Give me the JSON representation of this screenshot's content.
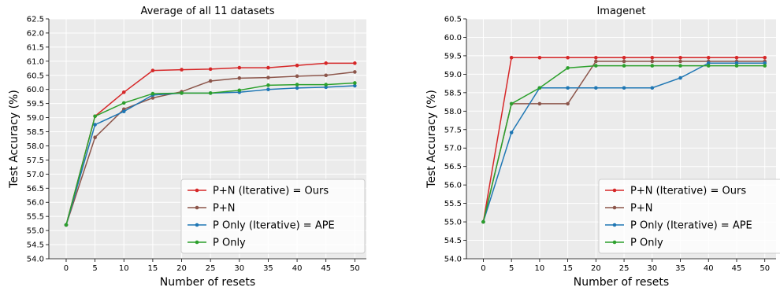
{
  "chart_data": [
    {
      "type": "line",
      "title": "Average of all 11 datasets",
      "xlabel": "Number of resets",
      "ylabel": "Test Accuracy (%)",
      "xlim": [
        -3,
        52
      ],
      "ylim": [
        54.0,
        62.5
      ],
      "x_ticks": [
        0,
        5,
        10,
        15,
        20,
        25,
        30,
        35,
        40,
        45,
        50
      ],
      "y_ticks": [
        54.0,
        54.5,
        55.0,
        55.5,
        56.0,
        56.5,
        57.0,
        57.5,
        58.0,
        58.5,
        59.0,
        59.5,
        60.0,
        60.5,
        61.0,
        61.5,
        62.0,
        62.5
      ],
      "grid": true,
      "legend_position": "lower-right",
      "x": [
        0,
        5,
        10,
        15,
        20,
        25,
        30,
        35,
        40,
        45,
        50
      ],
      "series": [
        {
          "name": "P+N (Iterative) = Ours",
          "color": "#d62728",
          "values": [
            55.2,
            59.05,
            59.9,
            60.67,
            60.7,
            60.72,
            60.77,
            60.77,
            60.85,
            60.93,
            60.93
          ]
        },
        {
          "name": "P+N",
          "color": "#8c564b",
          "values": [
            55.2,
            58.3,
            59.3,
            59.7,
            59.92,
            60.3,
            60.4,
            60.42,
            60.47,
            60.5,
            60.62
          ]
        },
        {
          "name": "P Only (Iterative) = APE",
          "color": "#1f77b4",
          "values": [
            55.2,
            58.75,
            59.22,
            59.8,
            59.87,
            59.87,
            59.9,
            60.0,
            60.05,
            60.08,
            60.13
          ]
        },
        {
          "name": "P Only",
          "color": "#2ca02c",
          "values": [
            55.2,
            59.05,
            59.52,
            59.85,
            59.87,
            59.87,
            59.97,
            60.15,
            60.17,
            60.17,
            60.23
          ]
        }
      ]
    },
    {
      "type": "line",
      "title": "Imagenet",
      "xlabel": "Number of resets",
      "ylabel": "Test Accuracy (%)",
      "xlim": [
        -3,
        52
      ],
      "ylim": [
        54.0,
        60.5
      ],
      "x_ticks": [
        0,
        5,
        10,
        15,
        20,
        25,
        30,
        35,
        40,
        45,
        50
      ],
      "y_ticks": [
        54.0,
        54.5,
        55.0,
        55.5,
        56.0,
        56.5,
        57.0,
        57.5,
        58.0,
        58.5,
        59.0,
        59.5,
        60.0,
        60.5
      ],
      "grid": true,
      "legend_position": "lower-right",
      "x": [
        0,
        5,
        10,
        15,
        20,
        25,
        30,
        35,
        40,
        45,
        50
      ],
      "series": [
        {
          "name": "P+N (Iterative) = Ours",
          "color": "#d62728",
          "values": [
            55.0,
            59.45,
            59.45,
            59.45,
            59.45,
            59.45,
            59.45,
            59.45,
            59.45,
            59.45,
            59.45
          ]
        },
        {
          "name": "P+N",
          "color": "#8c564b",
          "values": [
            55.0,
            58.2,
            58.2,
            58.2,
            59.35,
            59.35,
            59.35,
            59.35,
            59.35,
            59.35,
            59.35
          ]
        },
        {
          "name": "P Only (Iterative) = APE",
          "color": "#1f77b4",
          "values": [
            55.0,
            57.42,
            58.63,
            58.63,
            58.63,
            58.63,
            58.63,
            58.9,
            59.3,
            59.3,
            59.3
          ]
        },
        {
          "name": "P Only",
          "color": "#2ca02c",
          "values": [
            55.0,
            58.2,
            58.63,
            59.17,
            59.23,
            59.23,
            59.23,
            59.23,
            59.23,
            59.23,
            59.23
          ]
        }
      ]
    }
  ]
}
